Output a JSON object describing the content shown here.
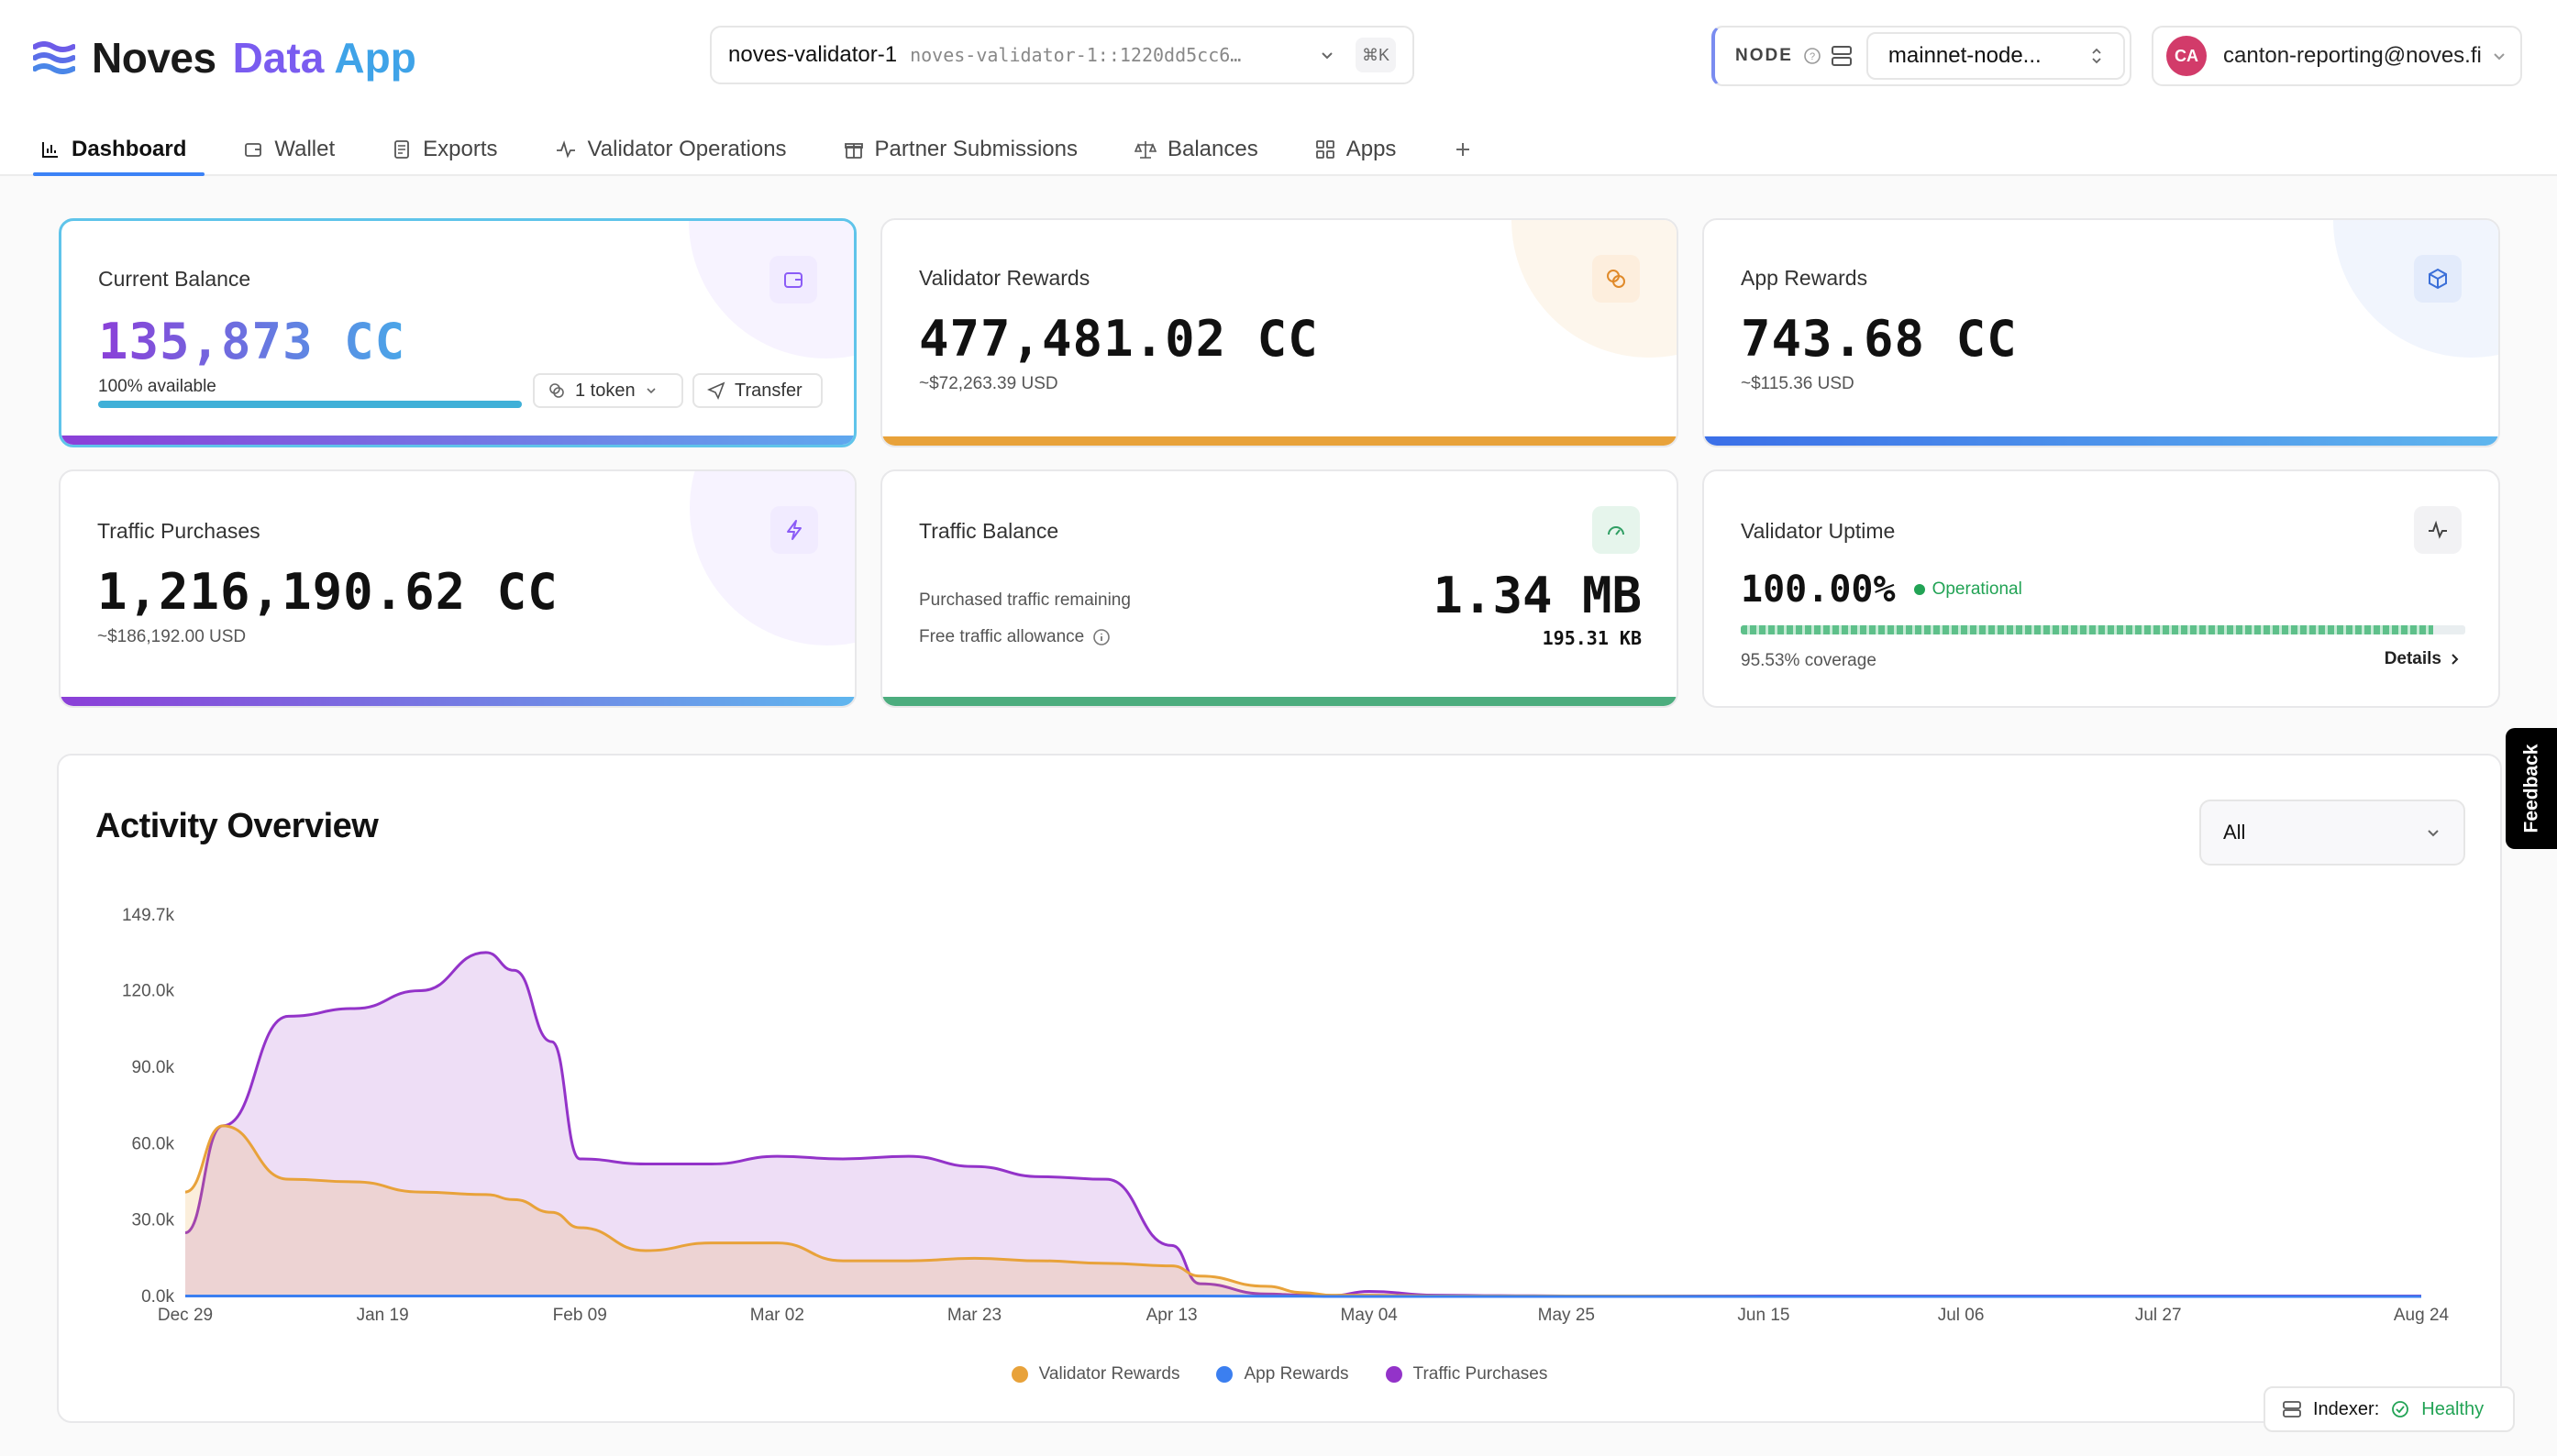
{
  "app": {
    "name_part1": "Noves",
    "name_part2": "Data",
    "name_part3": "App"
  },
  "validator": {
    "name": "noves-validator-1",
    "id": "noves-validator-1::1220dd5cc6…",
    "shortcut": "⌘K"
  },
  "node": {
    "label": "NODE",
    "value": "mainnet-node..."
  },
  "user": {
    "initials": "CA",
    "email": "canton-reporting@noves.fi"
  },
  "tabs": [
    {
      "label": "Dashboard",
      "icon": "bar-chart-icon"
    },
    {
      "label": "Wallet",
      "icon": "wallet-icon"
    },
    {
      "label": "Exports",
      "icon": "document-icon"
    },
    {
      "label": "Validator Operations",
      "icon": "activity-icon"
    },
    {
      "label": "Partner Submissions",
      "icon": "gift-icon"
    },
    {
      "label": "Balances",
      "icon": "scale-icon"
    },
    {
      "label": "Apps",
      "icon": "grid-icon"
    }
  ],
  "cards": {
    "current_balance": {
      "title": "Current Balance",
      "value": "135,873 CC",
      "available": "100% available",
      "available_pct": 100,
      "token_label": "1 token",
      "transfer_label": "Transfer"
    },
    "validator_rewards": {
      "title": "Validator Rewards",
      "value": "477,481.02 CC",
      "usd": "~$72,263.39 USD"
    },
    "app_rewards": {
      "title": "App Rewards",
      "value": "743.68 CC",
      "usd": "~$115.36 USD"
    },
    "traffic_purchases": {
      "title": "Traffic Purchases",
      "value": "1,216,190.62 CC",
      "usd": "~$186,192.00 USD"
    },
    "traffic_balance": {
      "title": "Traffic Balance",
      "purchased_label": "Purchased traffic remaining",
      "purchased_value": "1.34 MB",
      "free_label": "Free traffic allowance",
      "free_value": "195.31 KB"
    },
    "validator_uptime": {
      "title": "Validator Uptime",
      "value": "100.00%",
      "status": "Operational",
      "coverage": "95.53% coverage",
      "coverage_pct": 95.53,
      "details_label": "Details"
    }
  },
  "colors": {
    "validator_rewards": "#e8a23a",
    "app_rewards": "#3b7ff0",
    "traffic_purchases": "#9333c9",
    "accent": "#3b82f6",
    "healthy": "#22a355"
  },
  "activity": {
    "title": "Activity Overview",
    "filter": "All"
  },
  "chart_data": {
    "type": "area",
    "title": "Activity Overview",
    "x_labels": [
      "Dec 29",
      "Jan 19",
      "Feb 09",
      "Mar 02",
      "Mar 23",
      "Apr 13",
      "May 04",
      "May 25",
      "Jun 15",
      "Jul 06",
      "Jul 27",
      "Aug 24"
    ],
    "y_ticks": [
      "0.0k",
      "30.0k",
      "60.0k",
      "90.0k",
      "120.0k",
      "149.7k"
    ],
    "ylim": [
      0,
      149700
    ],
    "x": [
      "Dec 29",
      "Jan 02",
      "Jan 09",
      "Jan 16",
      "Jan 23",
      "Jan 30",
      "Feb 02",
      "Feb 06",
      "Feb 09",
      "Feb 16",
      "Feb 23",
      "Mar 02",
      "Mar 09",
      "Mar 16",
      "Mar 23",
      "Mar 30",
      "Apr 06",
      "Apr 13",
      "Apr 16",
      "Apr 23",
      "Apr 27",
      "Apr 30",
      "May 04",
      "May 11",
      "May 18",
      "May 25",
      "Jun 01",
      "Jun 15",
      "Jul 06",
      "Jul 27",
      "Aug 24"
    ],
    "series": [
      {
        "name": "Validator Rewards",
        "values": [
          41000,
          67000,
          46000,
          45000,
          41000,
          40000,
          38000,
          33000,
          27000,
          18000,
          21000,
          21000,
          14000,
          14000,
          15000,
          14000,
          13000,
          12000,
          8000,
          4000,
          1500,
          500,
          500,
          200,
          200,
          200,
          200,
          0,
          0,
          0,
          0
        ]
      },
      {
        "name": "App Rewards",
        "values": [
          200,
          200,
          200,
          200,
          200,
          200,
          200,
          200,
          200,
          200,
          200,
          200,
          200,
          200,
          200,
          200,
          200,
          200,
          200,
          100,
          100,
          0,
          0,
          0,
          0,
          0,
          0,
          0,
          0,
          0,
          0
        ]
      },
      {
        "name": "Traffic Purchases",
        "values": [
          25000,
          67000,
          110000,
          113000,
          120000,
          135000,
          128000,
          100000,
          54000,
          52000,
          52000,
          55000,
          54000,
          55000,
          51000,
          47000,
          46000,
          20000,
          5000,
          1000,
          500,
          300,
          2000,
          500,
          300,
          200,
          200,
          200,
          200,
          200,
          200
        ]
      }
    ]
  },
  "feedback_label": "Feedback",
  "indexer": {
    "label": "Indexer:",
    "status": "Healthy"
  }
}
